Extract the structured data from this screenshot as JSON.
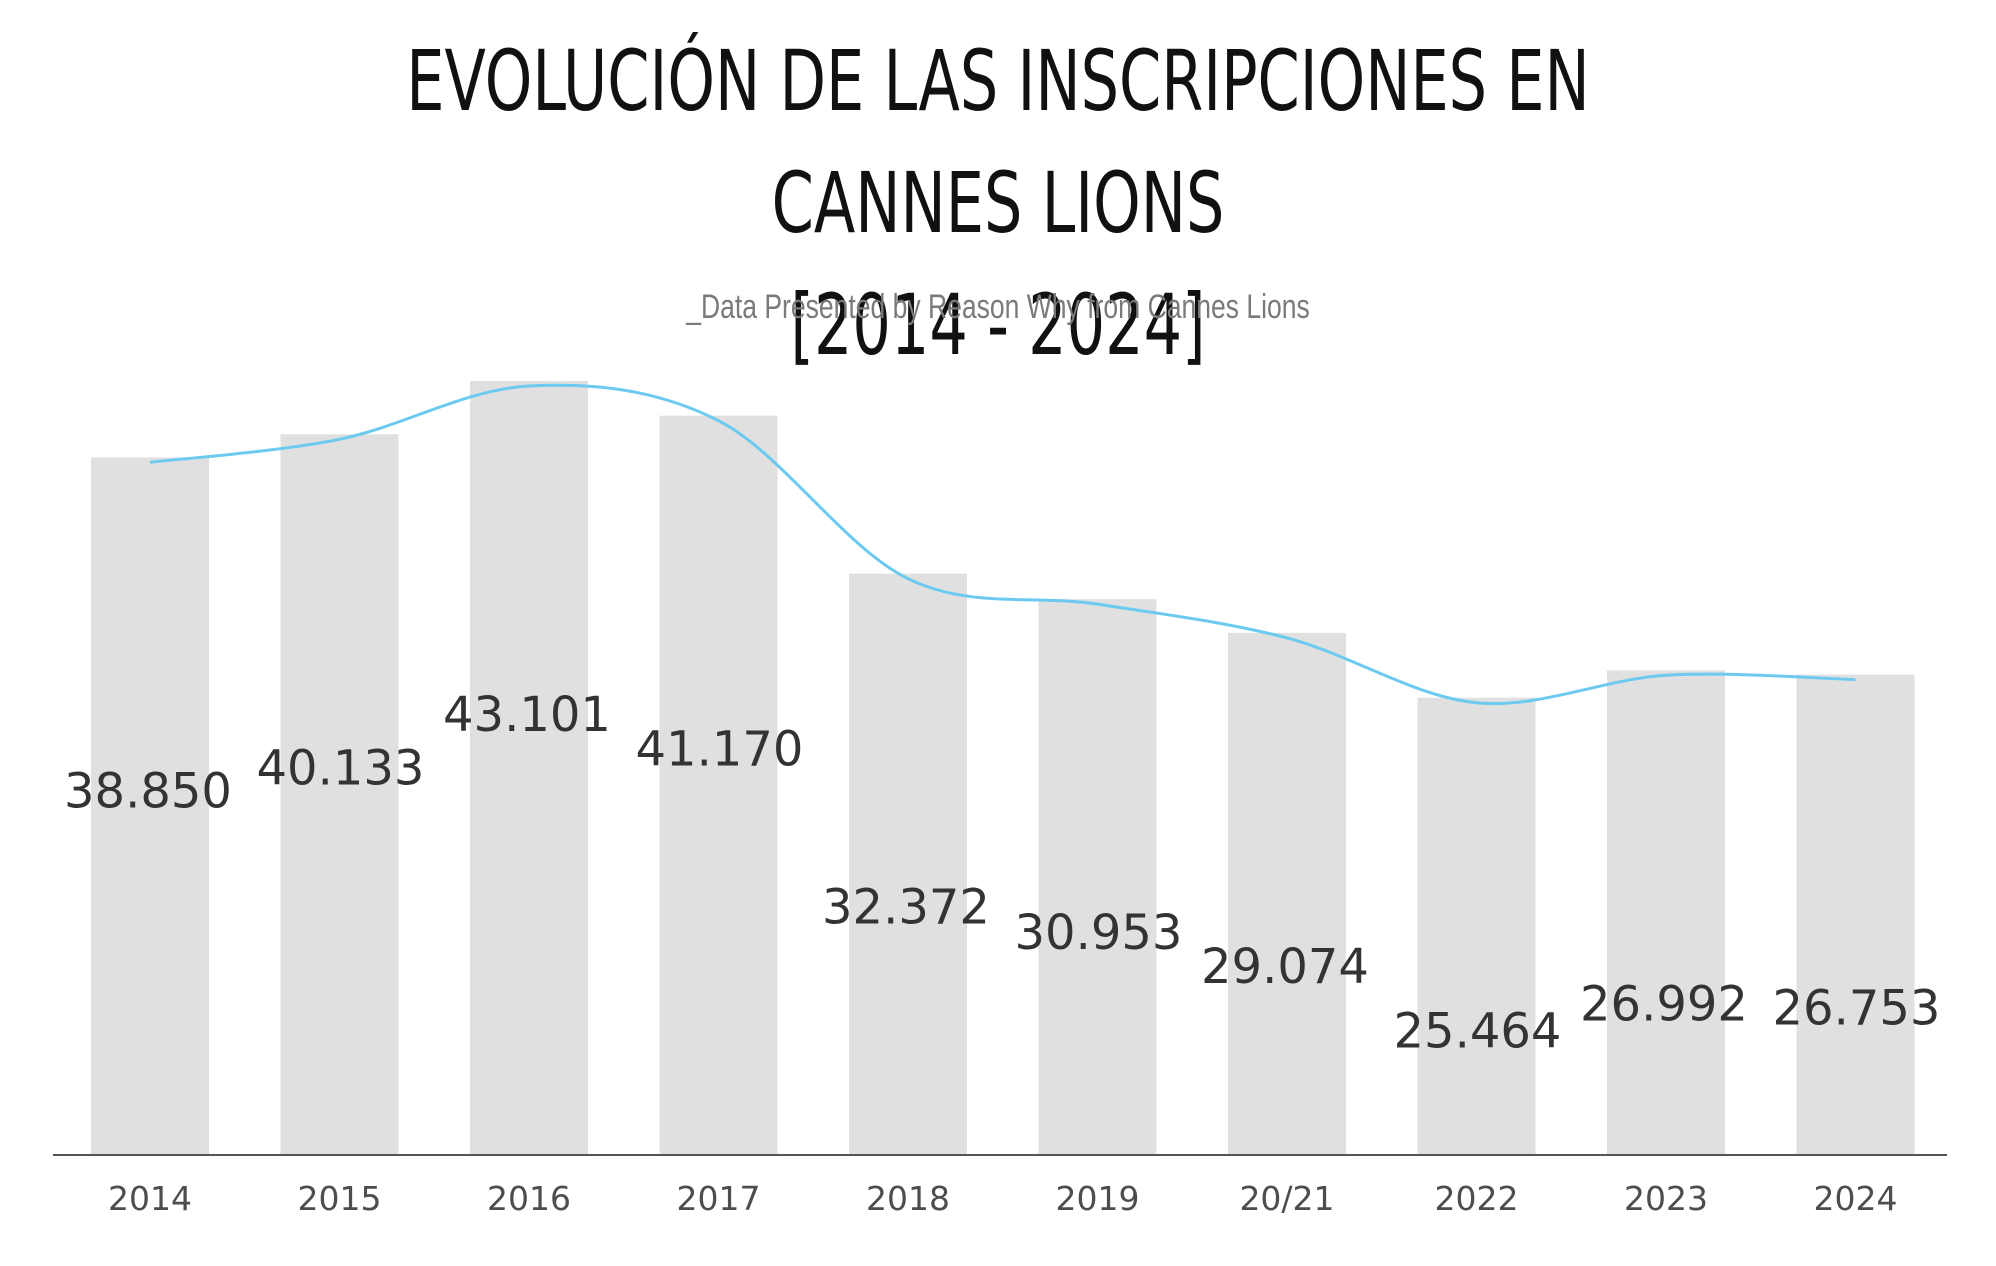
{
  "chart_data": {
    "type": "bar",
    "title_line1": "EVOLUCIÓN DE LAS INSCRIPCIONES EN CANNES LIONS",
    "title_line2": "[2014 - 2024]",
    "subtitle": "_Data Presented by Reason Why from Cannes Lions",
    "categories": [
      "2014",
      "2015",
      "2016",
      "2017",
      "2018",
      "2019",
      "20/21",
      "2022",
      "2023",
      "2024"
    ],
    "values": [
      38850,
      40133,
      43101,
      41170,
      32372,
      30953,
      29074,
      25464,
      26992,
      26753
    ],
    "value_labels": [
      "38.850",
      "40.133",
      "43.101",
      "41.170",
      "32.372",
      "30.953",
      "29.074",
      "25.464",
      "26.992",
      "26.753"
    ],
    "ylim": [
      0,
      43101
    ],
    "trend_line": true,
    "grid": false,
    "colors": {
      "bar": "#dfe0df",
      "trend": "#6ccaf0",
      "axis": "#555555"
    }
  }
}
